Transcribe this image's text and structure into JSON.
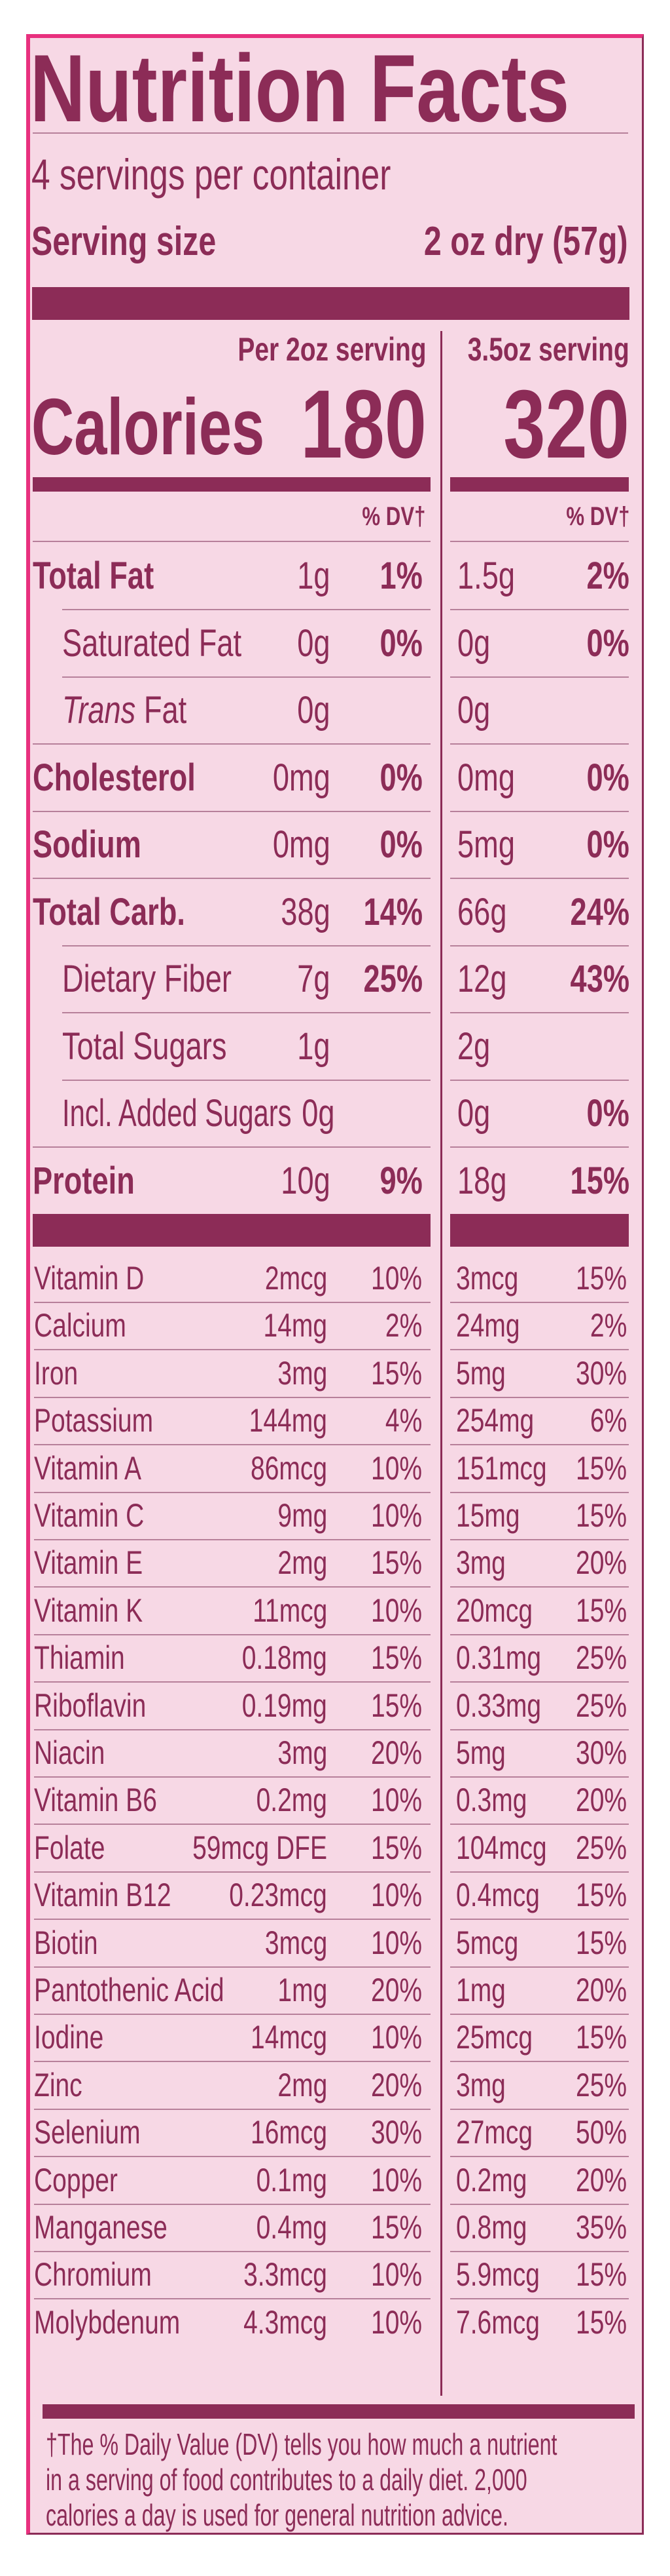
{
  "title": "Nutrition Facts",
  "servings_per_container": "4 servings per container",
  "serving_size_label": "Serving size",
  "serving_size_value": "2 oz dry (57g)",
  "columns": {
    "left_header": "Per 2oz serving",
    "right_header": "3.5oz serving",
    "dv_header": "% DV†"
  },
  "calories": {
    "label": "Calories",
    "left": "180",
    "right": "320"
  },
  "nutrients": [
    {
      "name": "Total Fat",
      "bold": true,
      "indent": false,
      "amt1": "1g",
      "dv1": "1%",
      "amt2": "1.5g",
      "dv2": "2%"
    },
    {
      "name": "Saturated Fat",
      "bold": false,
      "indent": true,
      "amt1": "0g",
      "dv1": "0%",
      "amt2": "0g",
      "dv2": "0%"
    },
    {
      "name": "Fat",
      "italic_prefix": "Trans",
      "bold": false,
      "indent": true,
      "amt1": "0g",
      "dv1": "",
      "amt2": "0g",
      "dv2": ""
    },
    {
      "name": "Cholesterol",
      "bold": true,
      "indent": false,
      "amt1": "0mg",
      "dv1": "0%",
      "amt2": "0mg",
      "dv2": "0%"
    },
    {
      "name": "Sodium",
      "bold": true,
      "indent": false,
      "amt1": "0mg",
      "dv1": "0%",
      "amt2": "5mg",
      "dv2": "0%"
    },
    {
      "name": "Total Carb.",
      "bold": true,
      "indent": false,
      "amt1": "38g",
      "dv1": "14%",
      "amt2": "66g",
      "dv2": "24%"
    },
    {
      "name": "Dietary Fiber",
      "bold": false,
      "indent": true,
      "amt1": "7g",
      "dv1": "25%",
      "amt2": "12g",
      "dv2": "43%"
    },
    {
      "name": "Total Sugars",
      "bold": false,
      "indent": true,
      "amt1": "1g",
      "dv1": "",
      "amt2": "2g",
      "dv2": ""
    },
    {
      "name": "Incl. Added Sugars",
      "bold": false,
      "indent": true,
      "amt1": "0g",
      "dv1": "",
      "amt2": "0g",
      "dv2": "0%"
    },
    {
      "name": "Protein",
      "bold": true,
      "indent": false,
      "amt1": "10g",
      "dv1": "9%",
      "amt2": "18g",
      "dv2": "15%"
    }
  ],
  "vitamins": [
    {
      "name": "Vitamin D",
      "amt1": "2mcg",
      "dv1": "10%",
      "amt2": "3mcg",
      "dv2": "15%"
    },
    {
      "name": "Calcium",
      "amt1": "14mg",
      "dv1": "2%",
      "amt2": "24mg",
      "dv2": "2%"
    },
    {
      "name": "Iron",
      "amt1": "3mg",
      "dv1": "15%",
      "amt2": "5mg",
      "dv2": "30%"
    },
    {
      "name": "Potassium",
      "amt1": "144mg",
      "dv1": "4%",
      "amt2": "254mg",
      "dv2": "6%"
    },
    {
      "name": "Vitamin A",
      "amt1": "86mcg",
      "dv1": "10%",
      "amt2": "151mcg",
      "dv2": "15%"
    },
    {
      "name": "Vitamin C",
      "amt1": "9mg",
      "dv1": "10%",
      "amt2": "15mg",
      "dv2": "15%"
    },
    {
      "name": "Vitamin E",
      "amt1": "2mg",
      "dv1": "15%",
      "amt2": "3mg",
      "dv2": "20%"
    },
    {
      "name": "Vitamin K",
      "amt1": "11mcg",
      "dv1": "10%",
      "amt2": "20mcg",
      "dv2": "15%"
    },
    {
      "name": "Thiamin",
      "amt1": "0.18mg",
      "dv1": "15%",
      "amt2": "0.31mg",
      "dv2": "25%"
    },
    {
      "name": "Riboflavin",
      "amt1": "0.19mg",
      "dv1": "15%",
      "amt2": "0.33mg",
      "dv2": "25%"
    },
    {
      "name": "Niacin",
      "amt1": "3mg",
      "dv1": "20%",
      "amt2": "5mg",
      "dv2": "30%"
    },
    {
      "name": "Vitamin B6",
      "amt1": "0.2mg",
      "dv1": "10%",
      "amt2": "0.3mg",
      "dv2": "20%"
    },
    {
      "name": "Folate",
      "amt1": "59mcg DFE",
      "dv1": "15%",
      "amt2": "104mcg",
      "dv2": "25%"
    },
    {
      "name": "Vitamin B12",
      "amt1": "0.23mcg",
      "dv1": "10%",
      "amt2": "0.4mcg",
      "dv2": "15%"
    },
    {
      "name": "Biotin",
      "amt1": "3mcg",
      "dv1": "10%",
      "amt2": "5mcg",
      "dv2": "15%"
    },
    {
      "name": "Pantothenic Acid",
      "amt1": "1mg",
      "dv1": "20%",
      "amt2": "1mg",
      "dv2": "20%"
    },
    {
      "name": "Iodine",
      "amt1": "14mcg",
      "dv1": "10%",
      "amt2": "25mcg",
      "dv2": "15%"
    },
    {
      "name": "Zinc",
      "amt1": "2mg",
      "dv1": "20%",
      "amt2": "3mg",
      "dv2": "25%"
    },
    {
      "name": "Selenium",
      "amt1": "16mcg",
      "dv1": "30%",
      "amt2": "27mcg",
      "dv2": "50%"
    },
    {
      "name": "Copper",
      "amt1": "0.1mg",
      "dv1": "10%",
      "amt2": "0.2mg",
      "dv2": "20%"
    },
    {
      "name": "Manganese",
      "amt1": "0.4mg",
      "dv1": "15%",
      "amt2": "0.8mg",
      "dv2": "35%"
    },
    {
      "name": "Chromium",
      "amt1": "3.3mcg",
      "dv1": "10%",
      "amt2": "5.9mcg",
      "dv2": "15%"
    },
    {
      "name": "Molybdenum",
      "amt1": "4.3mcg",
      "dv1": "10%",
      "amt2": "7.6mcg",
      "dv2": "15%"
    }
  ],
  "footnote": [
    "†The % Daily Value (DV) tells you how much a nutrient",
    "in a serving of  food contributes to a daily diet. 2,000",
    "calories a day is used for general nutrition advice."
  ],
  "colors": {
    "ink": "#8c2c57",
    "background": "#f7d8e5",
    "border_accent": "#e8307e"
  }
}
